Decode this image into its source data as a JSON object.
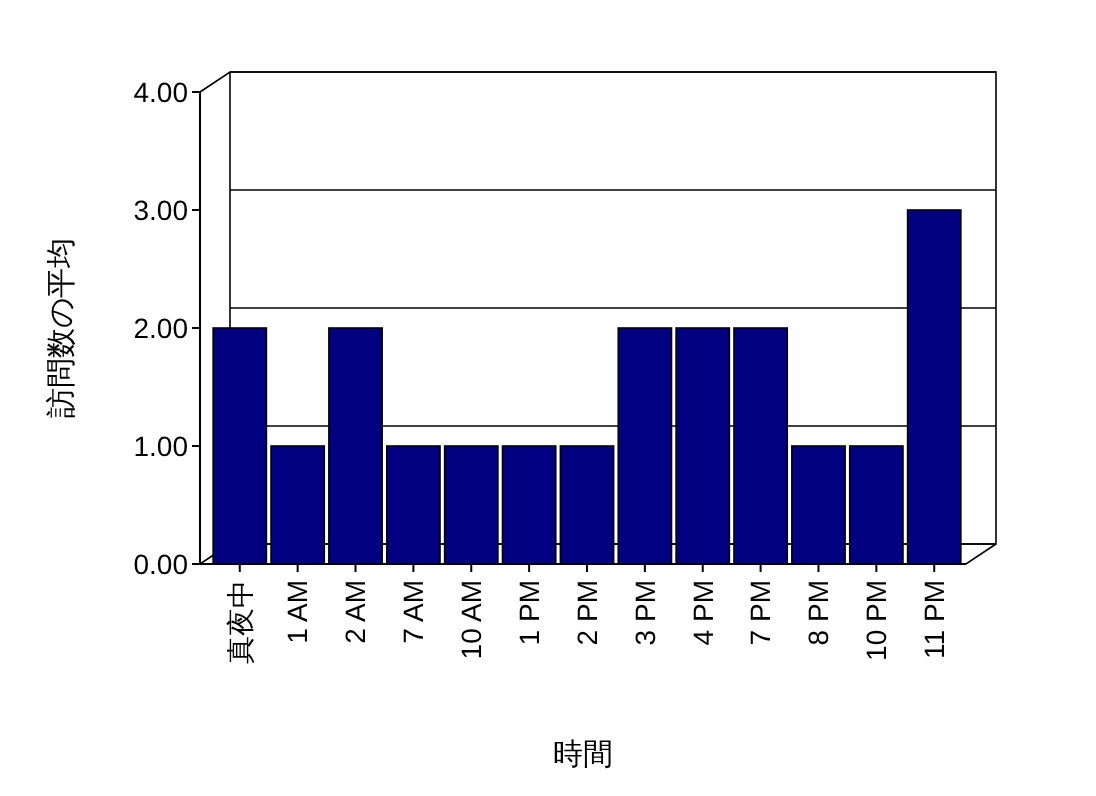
{
  "chart_data": {
    "type": "bar",
    "xlabel": "時間",
    "ylabel": "訪問数の平均",
    "categories": [
      "真夜中",
      "1 AM",
      "2 AM",
      "7 AM",
      "10 AM",
      "1 PM",
      "2 PM",
      "3 PM",
      "4 PM",
      "7 PM",
      "8 PM",
      "10 PM",
      "11 PM"
    ],
    "values": [
      2,
      1,
      2,
      1,
      1,
      1,
      1,
      2,
      2,
      2,
      1,
      1,
      3
    ],
    "color": "#000080",
    "ylim": [
      0,
      4
    ],
    "yticks": [
      {
        "value": 0,
        "label": "0.00"
      },
      {
        "value": 1,
        "label": "1.00"
      },
      {
        "value": 2,
        "label": "2.00"
      },
      {
        "value": 3,
        "label": "3.00"
      },
      {
        "value": 4,
        "label": "4.00"
      }
    ],
    "grid": "y"
  }
}
